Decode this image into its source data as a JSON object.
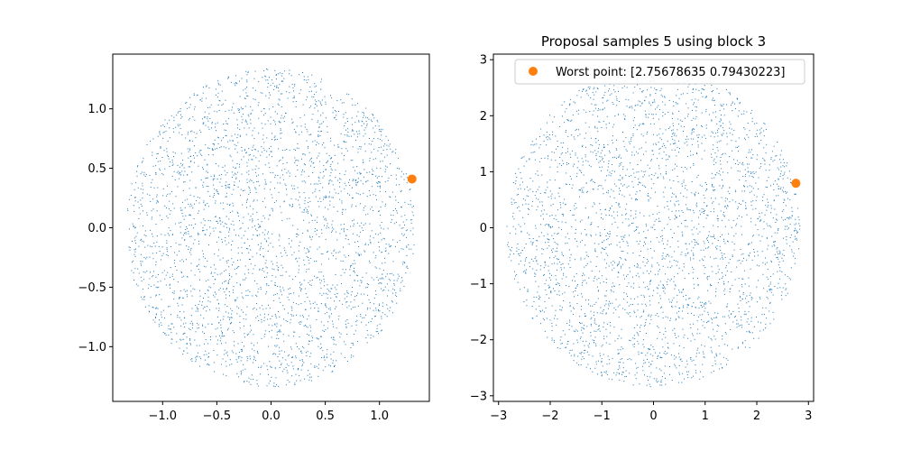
{
  "chart_data": [
    {
      "type": "scatter",
      "title": "",
      "xlabel": "",
      "ylabel": "",
      "xlim": [
        -1.46,
        1.46
      ],
      "ylim": [
        -1.46,
        1.46
      ],
      "xticks": [
        -1.0,
        -0.5,
        0.0,
        0.5,
        1.0
      ],
      "xtick_labels": [
        "−1.0",
        "−0.5",
        "0.0",
        "0.5",
        "1.0"
      ],
      "yticks": [
        -1.0,
        -0.5,
        0.0,
        0.5,
        1.0
      ],
      "ytick_labels": [
        "−1.0",
        "−0.5",
        "0.0",
        "0.5",
        "1.0"
      ],
      "grid": false,
      "series": [
        {
          "kind": "samples",
          "color": "#1f77b4",
          "distribution": "uniform-disk",
          "center": [
            0.0,
            0.0
          ],
          "radius": 1.34,
          "count": 3000
        },
        {
          "kind": "highlight",
          "color": "#ff7f0e",
          "points": [
            [
              1.3,
              0.41
            ]
          ]
        }
      ]
    },
    {
      "type": "scatter",
      "title": "Proposal samples 5 using block 3",
      "xlabel": "",
      "ylabel": "",
      "xlim": [
        -3.1,
        3.1
      ],
      "ylim": [
        -3.1,
        3.1
      ],
      "xticks": [
        -3,
        -2,
        -1,
        0,
        1,
        2,
        3
      ],
      "xtick_labels": [
        "−3",
        "−2",
        "−1",
        "0",
        "1",
        "2",
        "3"
      ],
      "yticks": [
        -3,
        -2,
        -1,
        0,
        1,
        2,
        3
      ],
      "ytick_labels": [
        "−3",
        "−2",
        "−1",
        "0",
        "1",
        "2",
        "3"
      ],
      "grid": false,
      "legend": {
        "position": "top-right",
        "entries": [
          {
            "label": "Worst point: [2.75678635 0.79430223]",
            "color": "#ff7f0e",
            "marker": "circle"
          }
        ]
      },
      "series": [
        {
          "kind": "samples",
          "color": "#1f77b4",
          "distribution": "uniform-disk",
          "center": [
            0.0,
            0.0
          ],
          "radius": 2.85,
          "count": 3000
        },
        {
          "kind": "highlight",
          "name": "Worst point: [2.75678635 0.79430223]",
          "color": "#ff7f0e",
          "points": [
            [
              2.75678635,
              0.79430223
            ]
          ]
        }
      ]
    }
  ]
}
